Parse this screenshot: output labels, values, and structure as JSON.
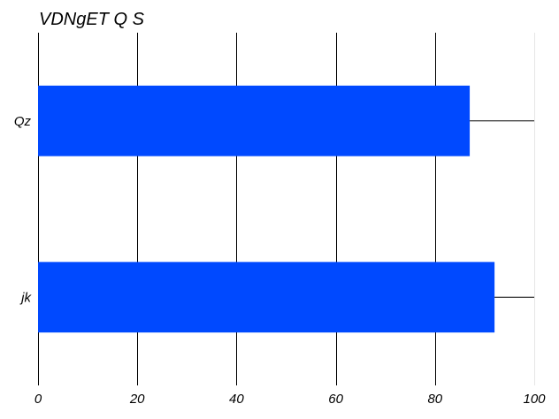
{
  "chart_data": {
    "type": "bar",
    "orientation": "horizontal",
    "title": "VDNgET Q S",
    "xlabel": "",
    "ylabel": "",
    "categories": [
      "Qz",
      "jk"
    ],
    "values": [
      87,
      92
    ],
    "xlim": [
      0,
      100
    ],
    "xticks": [
      0,
      20,
      40,
      60,
      80,
      100
    ],
    "xtick_labels": [
      "0",
      "20",
      "40",
      "60",
      "80",
      "100"
    ],
    "grid": true,
    "legend": "none",
    "bar_color": "#0049ff",
    "axis_color": "#000000"
  }
}
